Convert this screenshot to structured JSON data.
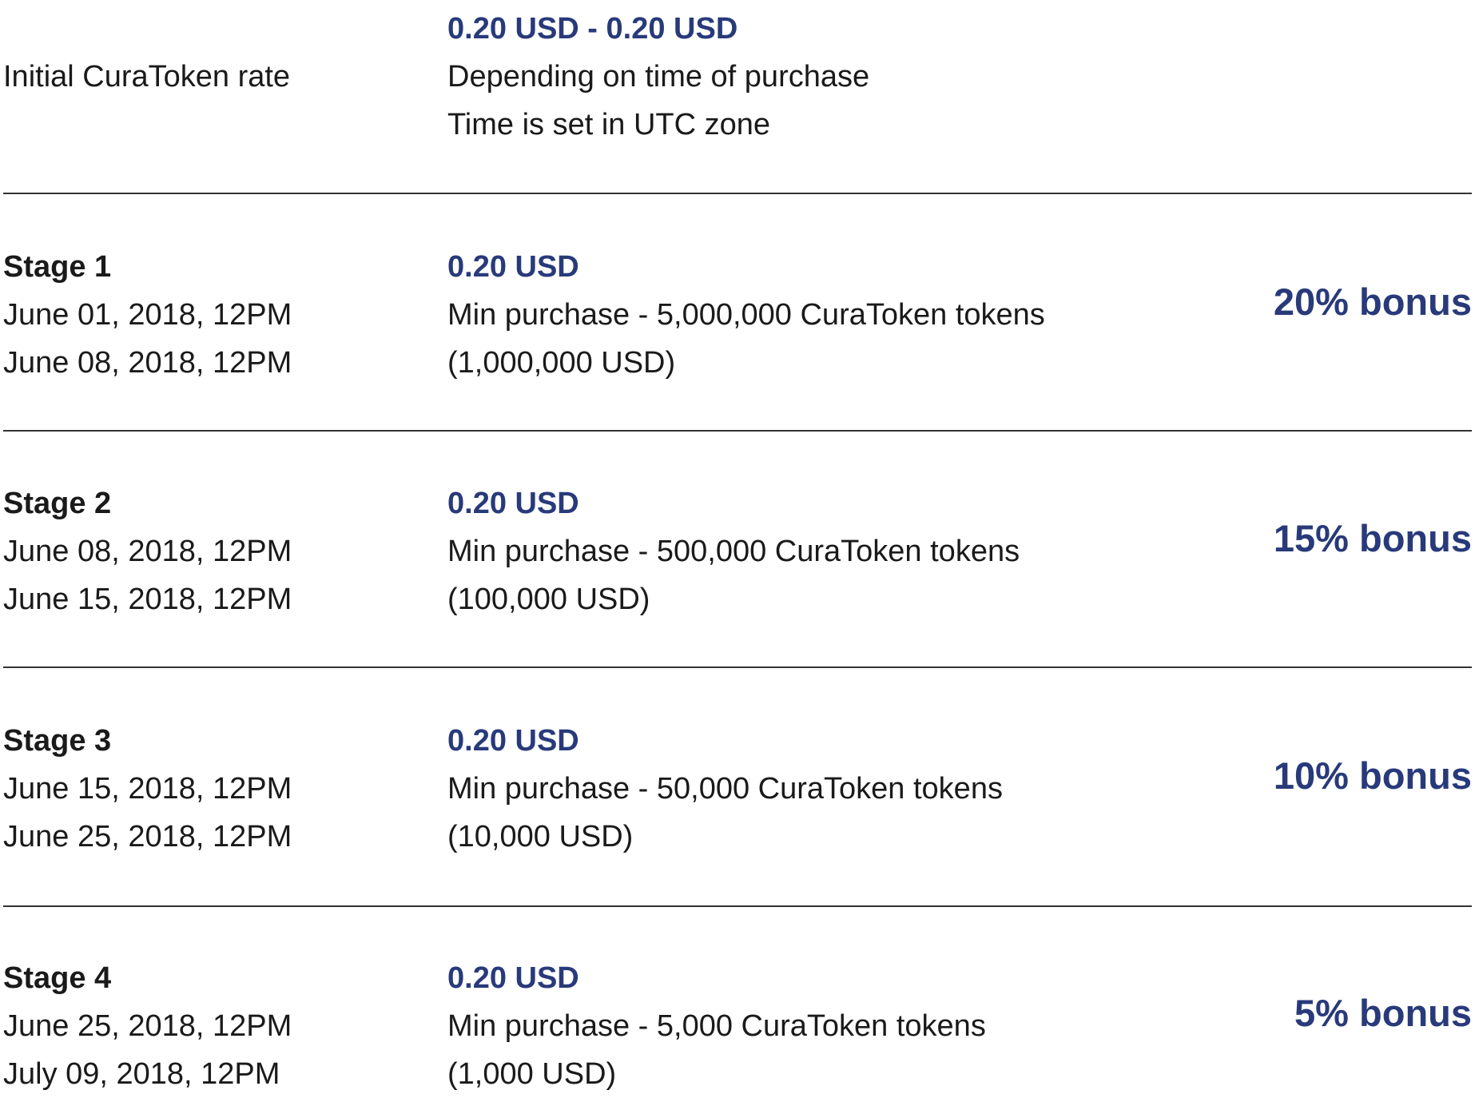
{
  "intro": {
    "label": "Initial CuraToken rate",
    "price_range": "0.20 USD - 0.20 USD",
    "note1": "Depending on time of purchase",
    "note2": "Time is set in UTC zone"
  },
  "stages": [
    {
      "title": "Stage 1",
      "start": "June 01, 2018, 12PM",
      "end": "June 08, 2018, 12PM",
      "price": "0.20 USD",
      "min_purchase": "Min purchase - 5,000,000 CuraToken tokens",
      "min_usd": "(1,000,000 USD)",
      "bonus": "20% bonus"
    },
    {
      "title": "Stage 2",
      "start": "June 08, 2018, 12PM",
      "end": "June 15, 2018, 12PM",
      "price": "0.20 USD",
      "min_purchase": "Min purchase - 500,000 CuraToken tokens",
      "min_usd": "(100,000 USD)",
      "bonus": "15% bonus"
    },
    {
      "title": "Stage 3",
      "start": "June 15, 2018, 12PM",
      "end": "June 25, 2018, 12PM",
      "price": "0.20 USD",
      "min_purchase": "Min purchase - 50,000 CuraToken tokens",
      "min_usd": "(10,000 USD)",
      "bonus": "10% bonus"
    },
    {
      "title": "Stage 4",
      "start": "June 25, 2018, 12PM",
      "end": "July 09, 2018, 12PM",
      "price": "0.20 USD",
      "min_purchase": "Min purchase - 5,000 CuraToken tokens",
      "min_usd": "(1,000 USD)",
      "bonus": "5% bonus"
    }
  ],
  "colors": {
    "accent": "#283a7a",
    "text": "#1a1a1a",
    "divider": "#333333"
  }
}
